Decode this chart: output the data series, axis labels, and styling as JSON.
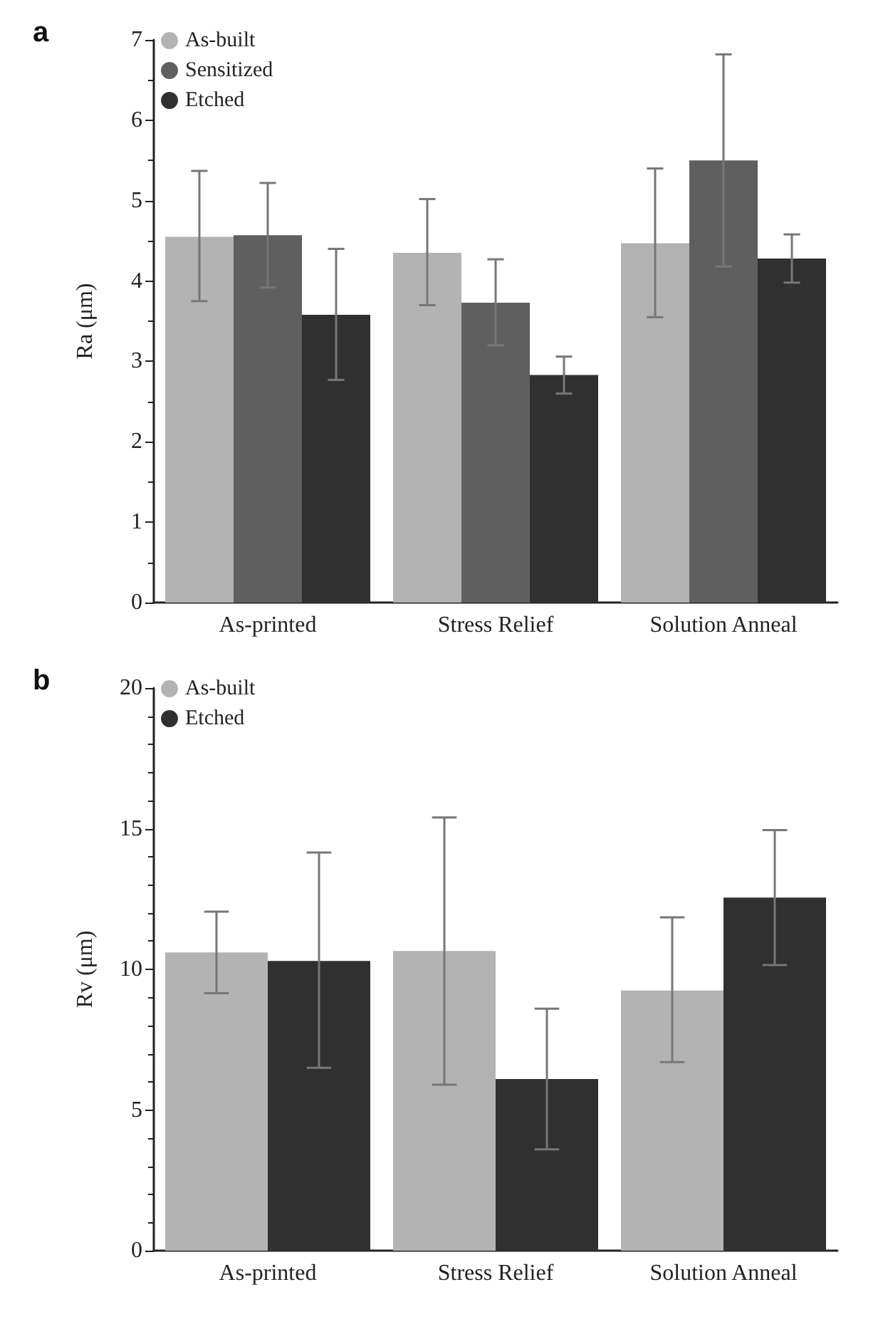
{
  "chart_data": [
    {
      "type": "bar",
      "title": "a",
      "ylabel": "Ra (μm)",
      "categories": [
        "As-printed",
        "Stress Relief",
        "Solution Anneal"
      ],
      "series": [
        {
          "name": "As-built",
          "color": "#b3b3b3",
          "values": [
            4.55,
            4.35,
            4.47
          ],
          "errors": [
            [
              3.75,
              5.37
            ],
            [
              3.7,
              5.02
            ],
            [
              3.55,
              5.4
            ]
          ]
        },
        {
          "name": "Sensitized",
          "color": "#5f5f5f",
          "values": [
            4.57,
            3.73,
            5.5
          ],
          "errors": [
            [
              3.92,
              5.22
            ],
            [
              3.2,
              4.27
            ],
            [
              4.18,
              6.82
            ]
          ]
        },
        {
          "name": "Etched",
          "color": "#303030",
          "values": [
            3.58,
            2.83,
            4.28
          ],
          "errors": [
            [
              2.77,
              4.4
            ],
            [
              2.6,
              3.06
            ],
            [
              3.98,
              4.58
            ]
          ]
        }
      ],
      "ylim": [
        0,
        7
      ],
      "yticks": [
        0,
        1,
        2,
        3,
        4,
        5,
        6,
        7
      ],
      "grid": false,
      "legend": "top left",
      "marker": "circle"
    },
    {
      "type": "bar",
      "title": "b",
      "ylabel": "Rv (μm)",
      "categories": [
        "As-printed",
        "Stress Relief",
        "Solution Anneal"
      ],
      "series": [
        {
          "name": "As-built",
          "color": "#b3b3b3",
          "values": [
            10.6,
            10.65,
            9.25
          ],
          "errors": [
            [
              9.15,
              12.05
            ],
            [
              5.9,
              15.4
            ],
            [
              6.7,
              11.85
            ]
          ]
        },
        {
          "name": "Etched",
          "color": "#303030",
          "values": [
            10.3,
            6.1,
            12.55
          ],
          "errors": [
            [
              6.5,
              14.15
            ],
            [
              3.6,
              8.6
            ],
            [
              10.15,
              14.95
            ]
          ]
        }
      ],
      "ylim": [
        0,
        20
      ],
      "yticks": [
        0,
        5,
        10,
        15,
        20
      ],
      "grid": false,
      "legend": "top left",
      "marker": "circle"
    }
  ]
}
